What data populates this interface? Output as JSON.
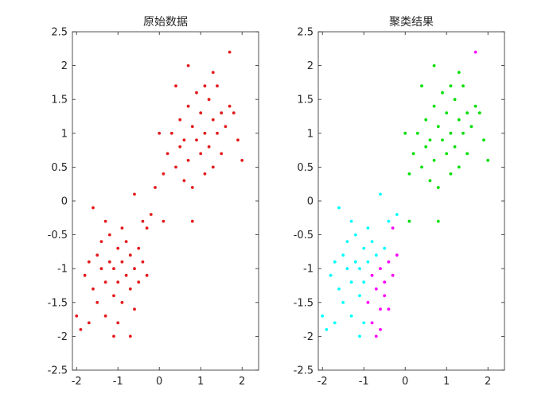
{
  "chart_data": [
    {
      "type": "scatter",
      "title": "原始数据",
      "xlim": [
        -2.1,
        2.4
      ],
      "ylim": [
        -2.5,
        2.5
      ],
      "xticks": [
        -2,
        -1,
        0,
        1,
        2
      ],
      "yticks": [
        -2.5,
        -2,
        -1.5,
        -1,
        -0.5,
        0,
        0.5,
        1,
        1.5,
        2,
        2.5
      ],
      "xtick_labels": [
        "-2",
        "-1",
        "0",
        "1",
        "2"
      ],
      "ytick_labels": [
        "-2.5",
        "-2",
        "-1.5",
        "-1",
        "-0.5",
        "0",
        "0.5",
        "1",
        "1.5",
        "2",
        "2.5"
      ],
      "grid": false,
      "series": [
        {
          "color": "#e41a1c",
          "points": [
            [
              -1.8,
              -1.1
            ],
            [
              -1.7,
              -0.9
            ],
            [
              -1.6,
              -1.3
            ],
            [
              -1.5,
              -0.8
            ],
            [
              -1.5,
              -1.5
            ],
            [
              -1.4,
              -1.0
            ],
            [
              -1.4,
              -0.6
            ],
            [
              -1.3,
              -1.2
            ],
            [
              -1.3,
              -1.7
            ],
            [
              -1.2,
              -0.9
            ],
            [
              -1.2,
              -0.5
            ],
            [
              -1.1,
              -1.4
            ],
            [
              -1.1,
              -1.0
            ],
            [
              -1.0,
              -0.7
            ],
            [
              -1.0,
              -1.2
            ],
            [
              -1.0,
              -1.8
            ],
            [
              -0.9,
              -0.9
            ],
            [
              -0.9,
              -1.5
            ],
            [
              -0.8,
              -1.1
            ],
            [
              -0.8,
              -0.6
            ],
            [
              -0.7,
              -1.3
            ],
            [
              -0.7,
              -0.8
            ],
            [
              -0.6,
              -1.0
            ],
            [
              -0.6,
              -1.6
            ],
            [
              -0.5,
              -0.7
            ],
            [
              -0.5,
              -1.2
            ],
            [
              -0.4,
              -0.9
            ],
            [
              -0.4,
              -0.3
            ],
            [
              -0.3,
              -1.1
            ],
            [
              -0.3,
              -0.4
            ],
            [
              -1.6,
              -0.1
            ],
            [
              -2.0,
              -1.7
            ],
            [
              -1.9,
              -1.9
            ],
            [
              -0.6,
              0.1
            ],
            [
              -0.2,
              -0.2
            ],
            [
              -0.7,
              -2.0
            ],
            [
              -1.1,
              -2.0
            ],
            [
              -1.7,
              -1.8
            ],
            [
              -1.3,
              -0.3
            ],
            [
              -0.9,
              -0.4
            ],
            [
              0.1,
              0.4
            ],
            [
              0.2,
              0.7
            ],
            [
              0.3,
              1.0
            ],
            [
              0.4,
              0.5
            ],
            [
              0.5,
              0.8
            ],
            [
              0.5,
              1.2
            ],
            [
              0.6,
              0.3
            ],
            [
              0.6,
              0.9
            ],
            [
              0.7,
              1.4
            ],
            [
              0.7,
              0.6
            ],
            [
              0.8,
              1.1
            ],
            [
              0.8,
              0.2
            ],
            [
              0.9,
              0.9
            ],
            [
              0.9,
              1.6
            ],
            [
              1.0,
              0.7
            ],
            [
              1.0,
              1.3
            ],
            [
              1.1,
              0.4
            ],
            [
              1.1,
              1.0
            ],
            [
              1.2,
              1.5
            ],
            [
              1.2,
              0.8
            ],
            [
              1.3,
              1.2
            ],
            [
              1.3,
              0.5
            ],
            [
              1.4,
              1.0
            ],
            [
              1.4,
              1.7
            ],
            [
              1.5,
              0.7
            ],
            [
              1.5,
              1.3
            ],
            [
              1.6,
              1.1
            ],
            [
              1.7,
              1.4
            ],
            [
              1.8,
              1.3
            ],
            [
              1.9,
              0.9
            ],
            [
              2.0,
              0.6
            ],
            [
              1.7,
              2.2
            ],
            [
              0.7,
              2.0
            ],
            [
              1.3,
              1.9
            ],
            [
              0.1,
              -0.3
            ],
            [
              0.8,
              -0.3
            ],
            [
              0.0,
              1.0
            ],
            [
              -0.1,
              0.2
            ],
            [
              0.4,
              1.7
            ],
            [
              1.1,
              1.7
            ]
          ]
        }
      ]
    },
    {
      "type": "scatter",
      "title": "聚类结果",
      "xlim": [
        -2.1,
        2.4
      ],
      "ylim": [
        -2.5,
        2.5
      ],
      "xticks": [
        -2,
        -1,
        0,
        1,
        2
      ],
      "yticks": [
        -2.5,
        -2,
        -1.5,
        -1,
        -0.5,
        0,
        0.5,
        1,
        1.5,
        2,
        2.5
      ],
      "xtick_labels": [
        "-2",
        "-1",
        "0",
        "1",
        "2"
      ],
      "ytick_labels": [
        "-2.5",
        "-2",
        "-1.5",
        "-1",
        "-0.5",
        "0",
        "0.5",
        "1",
        "1.5",
        "2",
        "2.5"
      ],
      "grid": false,
      "series": [
        {
          "color": "#00e000",
          "points": [
            [
              0.1,
              0.4
            ],
            [
              0.2,
              0.7
            ],
            [
              0.3,
              1.0
            ],
            [
              0.4,
              0.5
            ],
            [
              0.5,
              0.8
            ],
            [
              0.5,
              1.2
            ],
            [
              0.6,
              0.3
            ],
            [
              0.6,
              0.9
            ],
            [
              0.7,
              1.4
            ],
            [
              0.7,
              0.6
            ],
            [
              0.8,
              1.1
            ],
            [
              0.8,
              0.2
            ],
            [
              0.9,
              0.9
            ],
            [
              0.9,
              1.6
            ],
            [
              1.0,
              0.7
            ],
            [
              1.0,
              1.3
            ],
            [
              1.1,
              0.4
            ],
            [
              1.1,
              1.0
            ],
            [
              1.2,
              1.5
            ],
            [
              1.2,
              0.8
            ],
            [
              1.3,
              1.2
            ],
            [
              1.3,
              0.5
            ],
            [
              1.4,
              1.0
            ],
            [
              1.4,
              1.7
            ],
            [
              1.5,
              0.7
            ],
            [
              1.5,
              1.3
            ],
            [
              1.6,
              1.1
            ],
            [
              1.7,
              1.4
            ],
            [
              1.8,
              1.3
            ],
            [
              1.9,
              0.9
            ],
            [
              2.0,
              0.6
            ],
            [
              0.7,
              2.0
            ],
            [
              1.3,
              1.9
            ],
            [
              0.8,
              -0.3
            ],
            [
              0.0,
              1.0
            ],
            [
              0.4,
              1.7
            ],
            [
              1.1,
              1.7
            ],
            [
              0.1,
              -0.3
            ]
          ]
        },
        {
          "color": "#00ffff",
          "points": [
            [
              -1.8,
              -1.1
            ],
            [
              -1.7,
              -0.9
            ],
            [
              -1.6,
              -1.3
            ],
            [
              -1.5,
              -0.8
            ],
            [
              -1.5,
              -1.5
            ],
            [
              -1.4,
              -1.0
            ],
            [
              -1.4,
              -0.6
            ],
            [
              -1.3,
              -1.2
            ],
            [
              -1.3,
              -1.7
            ],
            [
              -1.2,
              -0.9
            ],
            [
              -1.2,
              -0.5
            ],
            [
              -1.1,
              -1.4
            ],
            [
              -1.1,
              -1.0
            ],
            [
              -1.0,
              -0.7
            ],
            [
              -1.0,
              -1.2
            ],
            [
              -1.0,
              -1.8
            ],
            [
              -0.9,
              -0.9
            ],
            [
              -0.8,
              -0.6
            ],
            [
              -0.7,
              -0.8
            ],
            [
              -0.5,
              -0.7
            ],
            [
              -0.4,
              -0.3
            ],
            [
              -1.6,
              -0.1
            ],
            [
              -2.0,
              -1.7
            ],
            [
              -1.9,
              -1.9
            ],
            [
              -0.6,
              0.1
            ],
            [
              -0.2,
              -0.2
            ],
            [
              -1.1,
              -2.0
            ],
            [
              -1.7,
              -1.8
            ],
            [
              -1.3,
              -0.3
            ],
            [
              -0.9,
              -0.4
            ]
          ]
        },
        {
          "color": "#ff00ff",
          "points": [
            [
              -0.9,
              -1.5
            ],
            [
              -0.8,
              -1.1
            ],
            [
              -0.7,
              -1.3
            ],
            [
              -0.6,
              -1.0
            ],
            [
              -0.6,
              -1.6
            ],
            [
              -0.5,
              -1.2
            ],
            [
              -0.4,
              -0.9
            ],
            [
              -0.3,
              -1.1
            ],
            [
              -0.3,
              -0.4
            ],
            [
              -0.7,
              -2.0
            ],
            [
              -0.8,
              -1.8
            ],
            [
              -0.5,
              -1.4
            ],
            [
              -0.4,
              -1.6
            ],
            [
              -0.6,
              -1.9
            ],
            [
              -0.2,
              -0.8
            ],
            [
              1.7,
              2.2
            ]
          ]
        }
      ]
    }
  ]
}
